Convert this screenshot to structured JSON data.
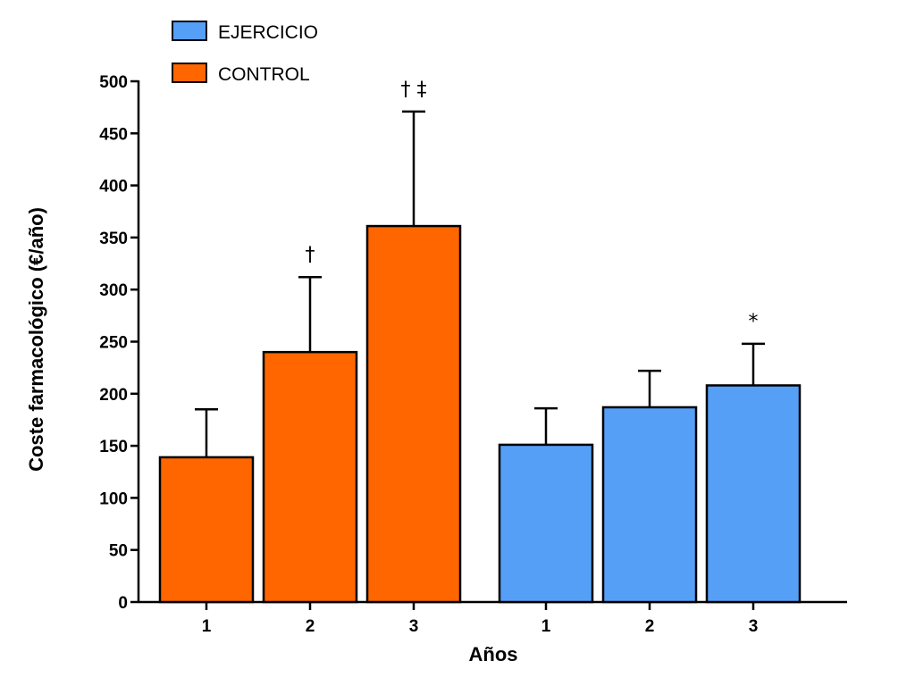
{
  "chart_data": {
    "type": "bar",
    "ylabel": "Coste farmacológico (€/año)",
    "xlabel": "Años",
    "ylim": [
      0,
      500
    ],
    "yticks": [
      0,
      50,
      100,
      150,
      200,
      250,
      300,
      350,
      400,
      450,
      500
    ],
    "legend": {
      "placement": "top-left",
      "entries": [
        {
          "label": "EJERCICIO",
          "color": "#569ff7"
        },
        {
          "label": "CONTROL",
          "color": "#ff6600"
        }
      ]
    },
    "groups": [
      {
        "series": "CONTROL",
        "color": "#ff6600",
        "categories": [
          "1",
          "2",
          "3"
        ],
        "values": [
          139,
          240,
          361
        ],
        "error_upper": [
          185,
          312,
          471
        ],
        "annotations": [
          "",
          "†",
          "† ‡"
        ]
      },
      {
        "series": "EJERCICIO",
        "color": "#569ff7",
        "categories": [
          "1",
          "2",
          "3"
        ],
        "values": [
          151,
          187,
          208
        ],
        "error_upper": [
          186,
          222,
          248
        ],
        "annotations": [
          "",
          "",
          "*"
        ]
      }
    ]
  }
}
